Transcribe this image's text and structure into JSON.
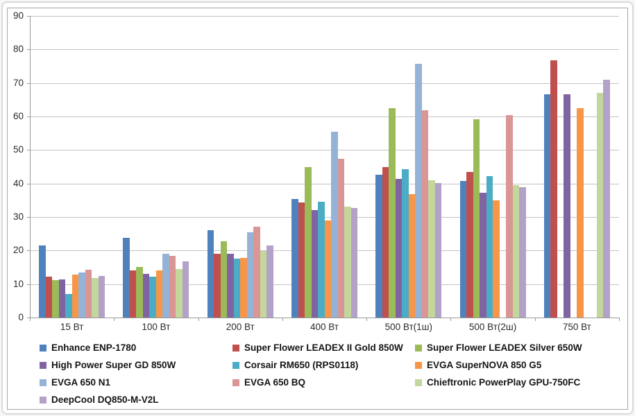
{
  "chart_data": {
    "type": "bar",
    "title": "",
    "xlabel": "",
    "ylabel": "",
    "grid": true,
    "legend_position": "bottom",
    "y_axis": {
      "min": 0,
      "max": 90,
      "step": 10
    },
    "categories": [
      "15 Вт",
      "100 Вт",
      "200 Вт",
      "400 Вт",
      "500 Вт(1ш)",
      "500 Вт(2ш)",
      "750 Вт"
    ],
    "series": [
      {
        "name": "Enhance ENP-1780",
        "color": "#4F81BD",
        "values": [
          21.5,
          23.8,
          26.1,
          35.3,
          42.6,
          40.8,
          66.6
        ]
      },
      {
        "name": "Super Flower LEADEX II Gold 850W",
        "color": "#C0504D",
        "values": [
          12.2,
          14.0,
          19.0,
          34.4,
          45.0,
          43.5,
          76.7
        ]
      },
      {
        "name": "Super Flower LEADEX Silver 650W",
        "color": "#9BBB59",
        "values": [
          11.2,
          15.2,
          22.8,
          45.0,
          62.4,
          59.2,
          null
        ]
      },
      {
        "name": "High Power Super GD 850W",
        "color": "#8064A2",
        "values": [
          11.4,
          13.0,
          19.1,
          32.0,
          41.4,
          37.3,
          66.6
        ]
      },
      {
        "name": "Corsair RM650 (RPS0118)",
        "color": "#4BACC6",
        "values": [
          7.0,
          12.3,
          17.5,
          34.6,
          44.2,
          42.3,
          null
        ]
      },
      {
        "name": "EVGA SuperNOVA 850 G5",
        "color": "#F79646",
        "values": [
          12.8,
          14.0,
          17.8,
          29.0,
          36.8,
          35.0,
          62.4
        ]
      },
      {
        "name": "EVGA 650 N1",
        "color": "#95B3D7",
        "values": [
          13.5,
          19.0,
          25.5,
          55.4,
          75.7,
          null,
          null
        ]
      },
      {
        "name": "EVGA 650 BQ",
        "color": "#D99694",
        "values": [
          14.2,
          18.5,
          27.2,
          47.3,
          61.8,
          60.4,
          null
        ]
      },
      {
        "name": "Chieftronic PowerPlay GPU-750FC",
        "color": "#C3D69B",
        "values": [
          11.8,
          14.5,
          19.9,
          33.1,
          41.0,
          39.6,
          67.0
        ]
      },
      {
        "name": "DeepCool DQ850-M-V2L",
        "color": "#B3A2C7",
        "values": [
          12.5,
          16.7,
          21.5,
          32.7,
          40.2,
          38.8,
          71.0
        ]
      }
    ]
  },
  "colors": {
    "axis": "#9a9a9a",
    "gridline": "#c3c3c3",
    "text": "#2b2b2b",
    "chart_border": "#a6a6a6",
    "frame_border": "#dadada",
    "background": "#ffffff"
  }
}
